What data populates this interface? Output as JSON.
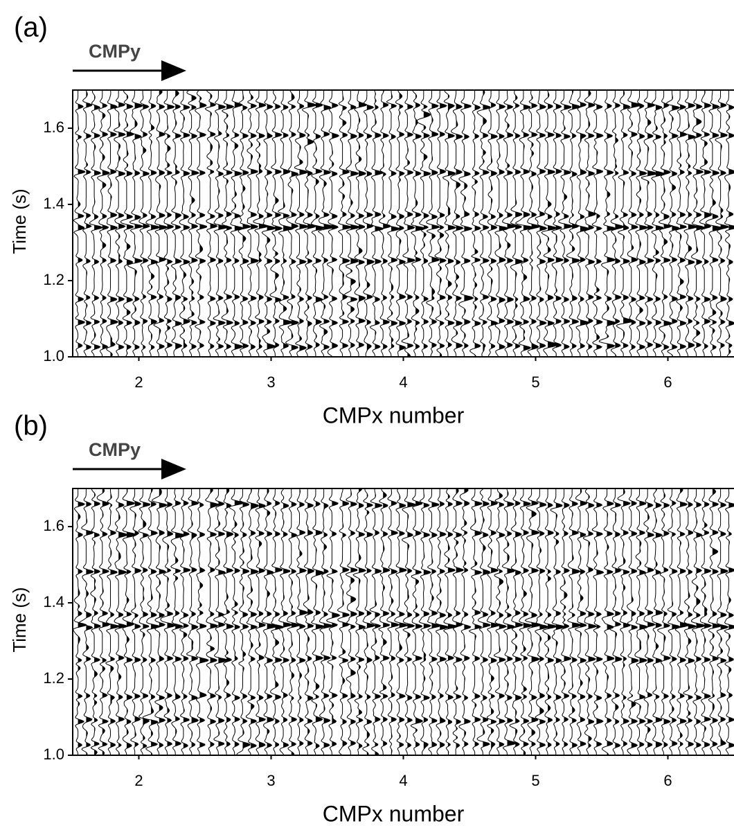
{
  "chart_data": [
    {
      "type": "wiggle",
      "panel_label": "(a)",
      "annotation": "CMPy",
      "xlabel": "CMPx number",
      "ylabel": "Time (s)",
      "xlim": [
        1.5,
        6.5
      ],
      "xticks": [
        2,
        3,
        4,
        5,
        6
      ],
      "ylim": [
        1.0,
        1.7
      ],
      "yticks": [
        {
          "value": 1.0,
          "label": "1.0"
        },
        1.2,
        1.4,
        1.6
      ],
      "color": "#000000"
    },
    {
      "type": "wiggle",
      "panel_label": "(b)",
      "annotation": "CMPy",
      "xlabel": "CMPx number",
      "ylabel": "Time (s)",
      "xlim": [
        1.5,
        6.5
      ],
      "xticks": [
        2,
        3,
        4,
        5,
        6
      ],
      "ylim": [
        1.0,
        1.7
      ],
      "yticks": [
        {
          "value": 1.0,
          "label": "1.0"
        },
        1.2,
        1.4,
        1.6
      ],
      "color": "#000000"
    }
  ]
}
